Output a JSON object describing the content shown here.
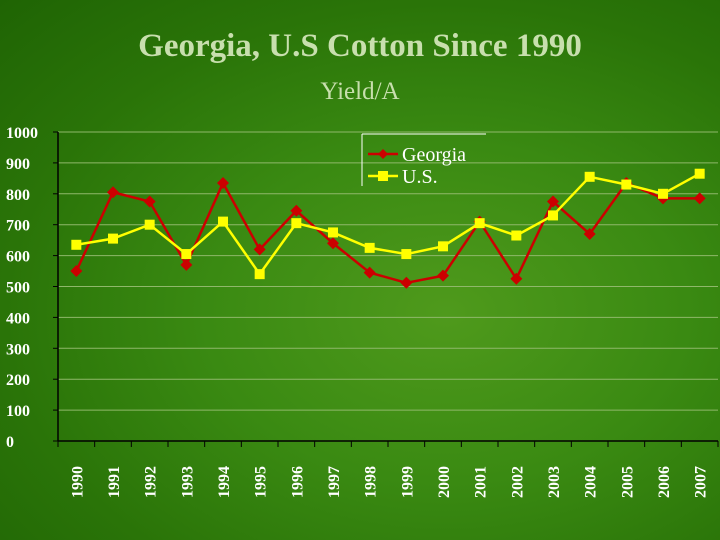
{
  "page": {
    "title": "Georgia, U.S Cotton Since 1990",
    "subtitle": "Yield/A"
  },
  "chart_data": {
    "type": "line",
    "categories": [
      "1990",
      "1991",
      "1992",
      "1993",
      "1994",
      "1995",
      "1996",
      "1997",
      "1998",
      "1999",
      "2000",
      "2001",
      "2002",
      "2003",
      "2004",
      "2005",
      "2006",
      "2007"
    ],
    "ylim": [
      0,
      1000
    ],
    "yticks": [
      0,
      100,
      200,
      300,
      400,
      500,
      600,
      700,
      800,
      900,
      1000
    ],
    "grid": true,
    "legend_placement": "top-right",
    "series": [
      {
        "name": "Georgia",
        "color": "#cc0000",
        "marker": "diamond",
        "values": [
          550,
          805,
          775,
          570,
          835,
          620,
          745,
          640,
          545,
          512,
          535,
          710,
          525,
          775,
          670,
          835,
          785,
          785
        ]
      },
      {
        "name": "U.S.",
        "color": "#ffff00",
        "marker": "square",
        "values": [
          635,
          655,
          700,
          605,
          710,
          540,
          705,
          675,
          625,
          605,
          630,
          705,
          665,
          730,
          855,
          830,
          800,
          865
        ]
      }
    ]
  }
}
